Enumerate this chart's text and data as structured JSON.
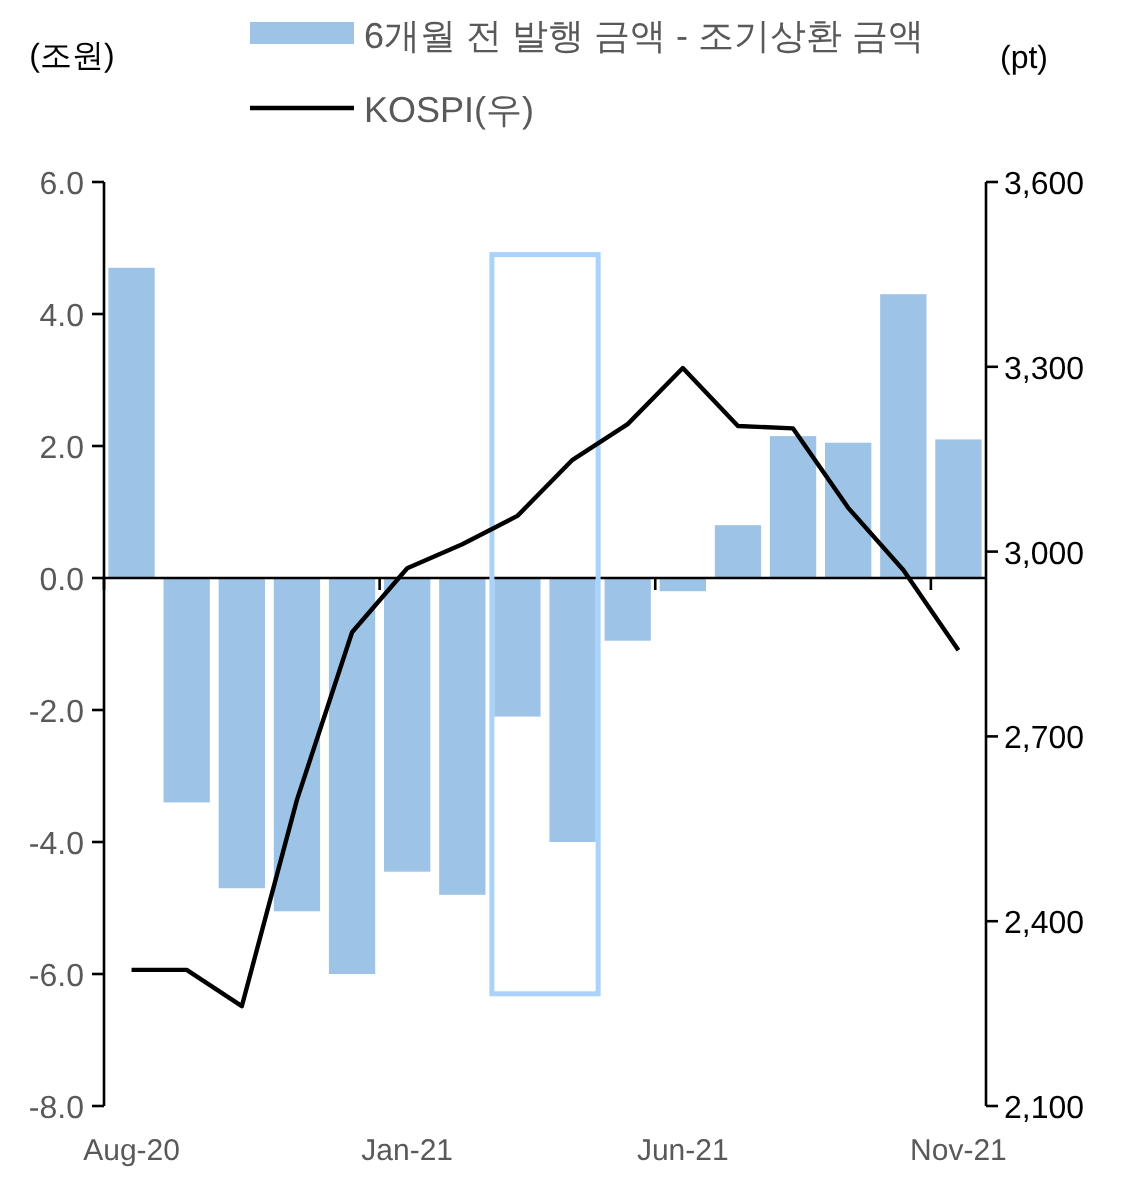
{
  "chart_data": {
    "type": "bar",
    "categories": [
      "Aug-20",
      null,
      null,
      null,
      null,
      "Jan-21",
      null,
      null,
      null,
      null,
      "Jun-21",
      null,
      null,
      null,
      null,
      "Nov-21"
    ],
    "series": [
      {
        "name": "6개월 전 발행 금액 - 조기상환 금액",
        "color": "#9dc3e6",
        "values": [
          4.7,
          -3.4,
          -4.7,
          -5.05,
          -6.0,
          -4.45,
          -4.8,
          -2.1,
          -4.0,
          -0.95,
          -0.2,
          0.8,
          2.15,
          2.05,
          4.3,
          2.1
        ]
      },
      {
        "name": "KOSPI(우)",
        "type": "line",
        "axis": "y2",
        "color": "#000000",
        "values": [
          2321,
          2321,
          2262,
          2597,
          2869,
          2973,
          3012,
          3058,
          3149,
          3207,
          3298,
          3204,
          3200,
          3071,
          2970,
          2840
        ]
      }
    ],
    "ylabel": "(조원)",
    "y2label": "(pt)",
    "ylim": [
      -8,
      6
    ],
    "yticks": [
      {
        "value": -8,
        "label": "-8.0"
      },
      {
        "value": -6,
        "label": "-6.0"
      },
      {
        "value": -4,
        "label": "-4.0"
      },
      {
        "value": -2,
        "label": "-2.0"
      },
      {
        "value": 0,
        "label": "0.0"
      },
      {
        "value": 2,
        "label": "2.0"
      },
      {
        "value": 4,
        "label": "4.0"
      },
      {
        "value": 6,
        "label": "6.0"
      }
    ],
    "y2lim": [
      2100,
      3600
    ],
    "y2ticks": [
      {
        "value": 2100,
        "label": "2,100"
      },
      {
        "value": 2400,
        "label": "2,400"
      },
      {
        "value": 2700,
        "label": "2,700"
      },
      {
        "value": 3000,
        "label": "3,000"
      },
      {
        "value": 3300,
        "label": "3,300"
      },
      {
        "value": 3600,
        "label": "3,600"
      }
    ],
    "legend": "top"
  }
}
